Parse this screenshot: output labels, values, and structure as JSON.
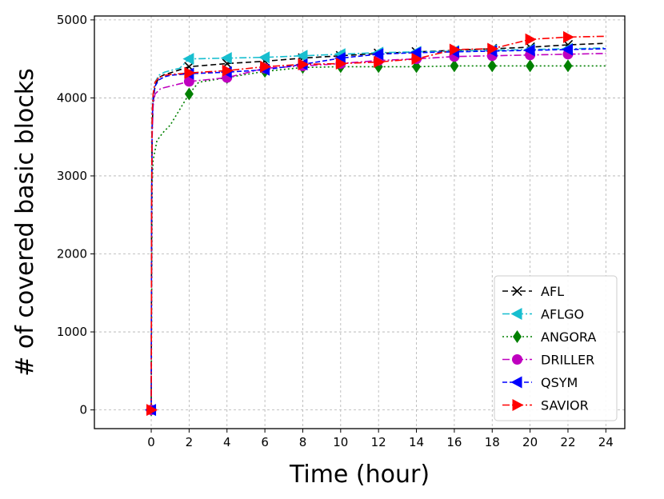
{
  "chart_data": {
    "type": "line",
    "title": "",
    "xlabel": "Time (hour)",
    "ylabel": "# of covered basic blocks",
    "xlim": [
      -3,
      25
    ],
    "ylim": [
      -240,
      5050
    ],
    "xticks": [
      0,
      2,
      4,
      6,
      8,
      10,
      12,
      14,
      16,
      18,
      20,
      22,
      24
    ],
    "yticks": [
      0,
      1000,
      2000,
      3000,
      4000,
      5000
    ],
    "grid": true,
    "legend_position": "lower-right",
    "series": [
      {
        "name": "AFL",
        "color": "#000000",
        "dash": "7,4",
        "marker": "x",
        "points": [
          [
            0,
            0
          ],
          [
            0.02,
            2500
          ],
          [
            0.05,
            3600
          ],
          [
            0.1,
            3950
          ],
          [
            0.2,
            4150
          ],
          [
            0.4,
            4260
          ],
          [
            0.7,
            4300
          ],
          [
            1,
            4320
          ],
          [
            2,
            4400
          ],
          [
            4,
            4440
          ],
          [
            6,
            4470
          ],
          [
            8,
            4510
          ],
          [
            10,
            4540
          ],
          [
            12,
            4570
          ],
          [
            14,
            4590
          ],
          [
            16,
            4610
          ],
          [
            18,
            4630
          ],
          [
            20,
            4650
          ],
          [
            22,
            4680
          ],
          [
            24,
            4700
          ]
        ],
        "marker_x": [
          0,
          2,
          4,
          6,
          8,
          10,
          12,
          14,
          16,
          18,
          20,
          22
        ]
      },
      {
        "name": "AFLGO",
        "color": "#17becf",
        "dash": "9,3,2,3",
        "marker": "tri_left",
        "points": [
          [
            0,
            0
          ],
          [
            0.02,
            2800
          ],
          [
            0.05,
            3800
          ],
          [
            0.1,
            4050
          ],
          [
            0.2,
            4200
          ],
          [
            0.4,
            4290
          ],
          [
            0.7,
            4330
          ],
          [
            1,
            4350
          ],
          [
            1.5,
            4380
          ],
          [
            2,
            4500
          ],
          [
            4,
            4510
          ],
          [
            6,
            4520
          ],
          [
            8,
            4540
          ],
          [
            10,
            4560
          ],
          [
            12,
            4580
          ],
          [
            14,
            4590
          ],
          [
            16,
            4600
          ],
          [
            18,
            4610
          ],
          [
            20,
            4620
          ],
          [
            22,
            4630
          ],
          [
            24,
            4640
          ]
        ],
        "marker_x": [
          0,
          2,
          4,
          6,
          8,
          10,
          12,
          14,
          16,
          18,
          20,
          22
        ]
      },
      {
        "name": "ANGORA",
        "color": "#008000",
        "dash": "2,3",
        "marker": "diamond",
        "points": [
          [
            0,
            0
          ],
          [
            0.05,
            2900
          ],
          [
            0.1,
            3200
          ],
          [
            0.3,
            3450
          ],
          [
            0.6,
            3550
          ],
          [
            1,
            3650
          ],
          [
            1.5,
            3850
          ],
          [
            2,
            4050
          ],
          [
            2.5,
            4200
          ],
          [
            4,
            4260
          ],
          [
            6,
            4340
          ],
          [
            8,
            4390
          ],
          [
            10,
            4400
          ],
          [
            12,
            4400
          ],
          [
            14,
            4400
          ],
          [
            16,
            4410
          ],
          [
            18,
            4410
          ],
          [
            20,
            4410
          ],
          [
            22,
            4410
          ],
          [
            24,
            4410
          ]
        ],
        "marker_x": [
          0,
          2,
          4,
          6,
          8,
          10,
          12,
          14,
          16,
          18,
          20,
          22
        ]
      },
      {
        "name": "DRILLER",
        "color": "#bf00bf",
        "dash": "9,3,2,3",
        "marker": "circle",
        "points": [
          [
            0,
            0
          ],
          [
            0.02,
            2400
          ],
          [
            0.05,
            3500
          ],
          [
            0.1,
            3900
          ],
          [
            0.2,
            4050
          ],
          [
            0.5,
            4120
          ],
          [
            1,
            4150
          ],
          [
            2,
            4210
          ],
          [
            4,
            4260
          ],
          [
            6,
            4380
          ],
          [
            8,
            4410
          ],
          [
            10,
            4440
          ],
          [
            12,
            4480
          ],
          [
            14,
            4500
          ],
          [
            16,
            4530
          ],
          [
            18,
            4540
          ],
          [
            20,
            4550
          ],
          [
            22,
            4560
          ],
          [
            24,
            4570
          ]
        ],
        "marker_x": [
          0,
          2,
          4,
          6,
          8,
          10,
          12,
          14,
          16,
          18,
          20,
          22
        ]
      },
      {
        "name": "QSYM",
        "color": "#0000ff",
        "dash": "6,3",
        "marker": "tri_left",
        "points": [
          [
            0,
            0
          ],
          [
            0.02,
            2600
          ],
          [
            0.05,
            3700
          ],
          [
            0.1,
            4000
          ],
          [
            0.2,
            4150
          ],
          [
            0.4,
            4230
          ],
          [
            0.7,
            4270
          ],
          [
            1,
            4290
          ],
          [
            2,
            4310
          ],
          [
            4,
            4330
          ],
          [
            6,
            4360
          ],
          [
            8,
            4430
          ],
          [
            10,
            4510
          ],
          [
            12,
            4560
          ],
          [
            14,
            4580
          ],
          [
            16,
            4590
          ],
          [
            18,
            4600
          ],
          [
            20,
            4610
          ],
          [
            22,
            4620
          ],
          [
            24,
            4630
          ]
        ],
        "marker_x": [
          0,
          2,
          4,
          6,
          8,
          10,
          12,
          14,
          16,
          18,
          20,
          22
        ]
      },
      {
        "name": "SAVIOR",
        "color": "#ff0000",
        "dash": "9,3,2,3",
        "marker": "tri_right",
        "points": [
          [
            0,
            0
          ],
          [
            0.02,
            2700
          ],
          [
            0.05,
            3800
          ],
          [
            0.1,
            4050
          ],
          [
            0.2,
            4200
          ],
          [
            0.4,
            4260
          ],
          [
            0.7,
            4290
          ],
          [
            1,
            4300
          ],
          [
            2,
            4320
          ],
          [
            4,
            4350
          ],
          [
            6,
            4400
          ],
          [
            8,
            4430
          ],
          [
            10,
            4440
          ],
          [
            12,
            4460
          ],
          [
            14,
            4500
          ],
          [
            16,
            4620
          ],
          [
            18,
            4630
          ],
          [
            20,
            4750
          ],
          [
            22,
            4780
          ],
          [
            24,
            4790
          ]
        ],
        "marker_x": [
          0,
          2,
          4,
          6,
          8,
          10,
          12,
          14,
          16,
          18,
          20,
          22
        ]
      }
    ]
  }
}
